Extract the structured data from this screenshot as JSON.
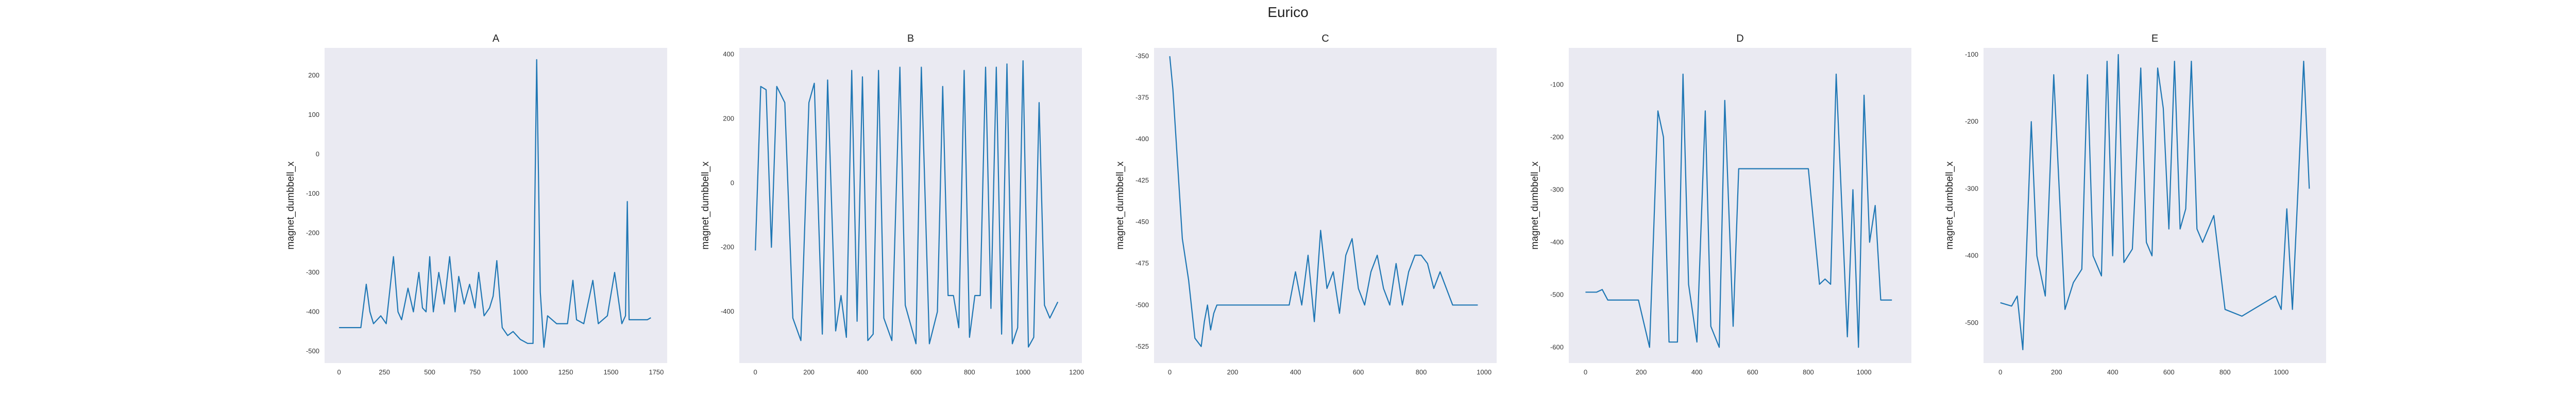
{
  "figure": {
    "title": "Eurico"
  },
  "colors": {
    "line": "#1f77b4",
    "panel_bg": "#eaeaf2",
    "text": "#333333"
  },
  "chart_data": [
    {
      "type": "line",
      "title": "A",
      "xlabel": "",
      "ylabel": "magnet_dumbbell_x",
      "xlim": [
        -80,
        1810
      ],
      "ylim": [
        -530,
        270
      ],
      "xticks": [
        0,
        250,
        500,
        750,
        1000,
        1250,
        1500,
        1750
      ],
      "yticks": [
        200,
        100,
        0,
        -100,
        -200,
        -300,
        -400,
        -500
      ],
      "grid": false,
      "x": [
        0,
        120,
        150,
        170,
        190,
        230,
        260,
        300,
        325,
        345,
        380,
        410,
        440,
        460,
        480,
        500,
        520,
        550,
        580,
        610,
        640,
        660,
        690,
        720,
        750,
        770,
        800,
        830,
        850,
        870,
        900,
        930,
        960,
        1000,
        1040,
        1070,
        1090,
        1110,
        1130,
        1150,
        1200,
        1260,
        1290,
        1310,
        1350,
        1400,
        1430,
        1480,
        1520,
        1560,
        1580,
        1590,
        1600,
        1650,
        1700,
        1720
      ],
      "y": [
        -440,
        -440,
        -330,
        -400,
        -430,
        -410,
        -430,
        -260,
        -400,
        -420,
        -340,
        -400,
        -300,
        -390,
        -400,
        -260,
        -400,
        -300,
        -380,
        -260,
        -400,
        -310,
        -380,
        -330,
        -390,
        -300,
        -410,
        -390,
        -360,
        -270,
        -440,
        -460,
        -450,
        -470,
        -480,
        -480,
        240,
        -350,
        -490,
        -410,
        -430,
        -430,
        -320,
        -420,
        -430,
        -320,
        -430,
        -410,
        -300,
        -430,
        -410,
        -120,
        -420,
        -420,
        -420,
        -415
      ]
    },
    {
      "type": "line",
      "title": "B",
      "xlabel": "",
      "ylabel": "magnet_dumbbell_x",
      "xlim": [
        -60,
        1220
      ],
      "ylim": [
        -560,
        420
      ],
      "xticks": [
        0,
        200,
        400,
        600,
        800,
        1000,
        1200
      ],
      "yticks": [
        400,
        200,
        0,
        -200,
        -400
      ],
      "grid": false,
      "x": [
        0,
        20,
        40,
        60,
        80,
        110,
        140,
        170,
        200,
        220,
        250,
        270,
        300,
        320,
        340,
        360,
        380,
        400,
        420,
        440,
        460,
        480,
        510,
        540,
        560,
        580,
        600,
        620,
        650,
        680,
        700,
        720,
        740,
        760,
        780,
        800,
        820,
        840,
        860,
        880,
        900,
        920,
        940,
        960,
        980,
        1000,
        1020,
        1040,
        1060,
        1080,
        1100,
        1130
      ],
      "y": [
        -210,
        300,
        290,
        -200,
        300,
        250,
        -420,
        -490,
        250,
        310,
        -470,
        320,
        -460,
        -350,
        -480,
        350,
        -430,
        330,
        -490,
        -470,
        350,
        -420,
        -490,
        360,
        -380,
        -440,
        -500,
        360,
        -500,
        -400,
        300,
        -350,
        -350,
        -450,
        350,
        -480,
        -350,
        -350,
        360,
        -390,
        360,
        -470,
        370,
        -500,
        -450,
        380,
        -510,
        -480,
        250,
        -380,
        -420,
        -370
      ]
    },
    {
      "type": "line",
      "title": "C",
      "xlabel": "",
      "ylabel": "magnet_dumbbell_x",
      "xlim": [
        -50,
        1040
      ],
      "ylim": [
        -535,
        -345
      ],
      "xticks": [
        0,
        200,
        400,
        600,
        800,
        1000
      ],
      "yticks": [
        -350,
        -375,
        -400,
        -425,
        -450,
        -475,
        -500,
        -525
      ],
      "grid": false,
      "x": [
        0,
        10,
        20,
        40,
        60,
        80,
        100,
        110,
        120,
        130,
        140,
        150,
        170,
        200,
        240,
        280,
        320,
        360,
        380,
        400,
        420,
        440,
        460,
        480,
        500,
        520,
        540,
        560,
        580,
        600,
        620,
        640,
        660,
        680,
        700,
        720,
        740,
        760,
        780,
        800,
        820,
        840,
        860,
        880,
        900,
        920,
        940,
        980
      ],
      "y": [
        -350,
        -370,
        -400,
        -460,
        -485,
        -520,
        -525,
        -510,
        -500,
        -515,
        -505,
        -500,
        -500,
        -500,
        -500,
        -500,
        -500,
        -500,
        -500,
        -480,
        -500,
        -470,
        -510,
        -455,
        -490,
        -480,
        -505,
        -470,
        -460,
        -490,
        -500,
        -480,
        -470,
        -490,
        -500,
        -475,
        -500,
        -480,
        -470,
        -470,
        -475,
        -490,
        -480,
        -490,
        -500,
        -500,
        -500,
        -500
      ]
    },
    {
      "type": "line",
      "title": "D",
      "xlabel": "",
      "ylabel": "magnet_dumbbell_x",
      "xlim": [
        -60,
        1170
      ],
      "ylim": [
        -630,
        -30
      ],
      "xticks": [
        0,
        200,
        400,
        600,
        800,
        1000
      ],
      "yticks": [
        -100,
        -200,
        -300,
        -400,
        -500,
        -600
      ],
      "grid": false,
      "x": [
        0,
        40,
        60,
        80,
        100,
        150,
        190,
        230,
        260,
        280,
        300,
        330,
        350,
        370,
        400,
        430,
        450,
        480,
        500,
        530,
        550,
        600,
        700,
        800,
        840,
        860,
        880,
        900,
        940,
        960,
        980,
        1000,
        1020,
        1040,
        1060,
        1100
      ],
      "y": [
        -495,
        -495,
        -490,
        -510,
        -510,
        -510,
        -510,
        -600,
        -150,
        -200,
        -590,
        -590,
        -80,
        -480,
        -590,
        -150,
        -560,
        -600,
        -130,
        -560,
        -260,
        -260,
        -260,
        -260,
        -480,
        -470,
        -480,
        -80,
        -580,
        -300,
        -600,
        -120,
        -400,
        -330,
        -510,
        -510
      ]
    },
    {
      "type": "line",
      "title": "E",
      "xlabel": "",
      "ylabel": "magnet_dumbbell_x",
      "xlim": [
        -60,
        1160
      ],
      "ylim": [
        -560,
        -90
      ],
      "xticks": [
        0,
        200,
        400,
        600,
        800,
        1000
      ],
      "yticks": [
        -100,
        -200,
        -300,
        -400,
        -500
      ],
      "grid": false,
      "x": [
        0,
        40,
        60,
        80,
        110,
        130,
        160,
        190,
        230,
        260,
        290,
        310,
        330,
        360,
        380,
        400,
        420,
        440,
        470,
        500,
        520,
        540,
        560,
        580,
        600,
        620,
        640,
        660,
        680,
        700,
        720,
        760,
        800,
        860,
        900,
        980,
        1000,
        1020,
        1040,
        1060,
        1080,
        1100
      ],
      "y": [
        -470,
        -475,
        -460,
        -540,
        -200,
        -400,
        -460,
        -130,
        -480,
        -440,
        -420,
        -130,
        -400,
        -430,
        -110,
        -400,
        -100,
        -410,
        -390,
        -120,
        -380,
        -400,
        -120,
        -180,
        -360,
        -110,
        -360,
        -330,
        -110,
        -360,
        -380,
        -340,
        -480,
        -490,
        -480,
        -460,
        -480,
        -330,
        -480,
        -300,
        -110,
        -300
      ]
    }
  ]
}
